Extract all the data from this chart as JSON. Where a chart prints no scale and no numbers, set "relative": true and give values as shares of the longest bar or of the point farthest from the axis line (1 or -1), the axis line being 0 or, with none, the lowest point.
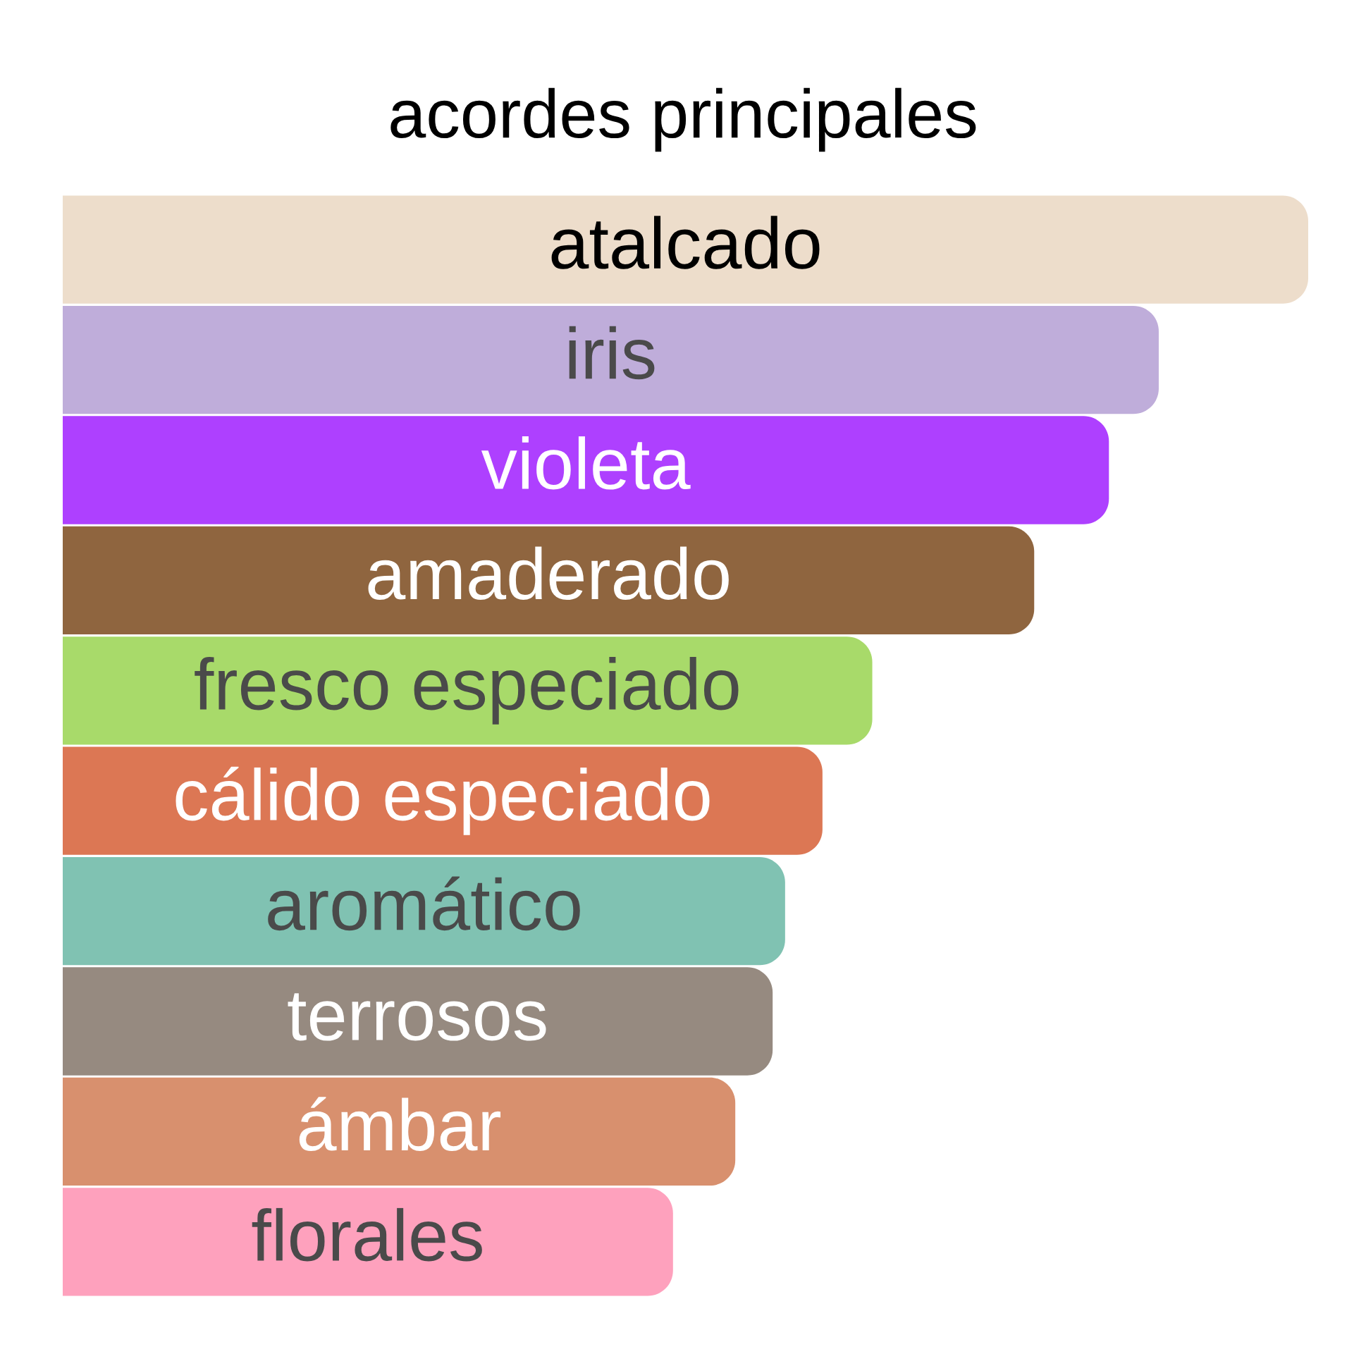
{
  "chart_data": {
    "type": "bar",
    "orientation": "horizontal",
    "relative": true,
    "title": "acordes principales",
    "categories": [
      "atalcado",
      "iris",
      "violeta",
      "amaderado",
      "fresco especiado",
      "cálido especiado",
      "aromático",
      "terrosos",
      "ámbar",
      "florales"
    ],
    "values": [
      1,
      0.88,
      0.84,
      0.78,
      0.65,
      0.61,
      0.58,
      0.57,
      0.54,
      0.49
    ],
    "colors": [
      "#edddcb",
      "#bfadda",
      "#ae40ff",
      "#8f653f",
      "#a8da6a",
      "#dc7754",
      "#80c2b2",
      "#968a80",
      "#d8906e",
      "#fea1bd"
    ]
  }
}
